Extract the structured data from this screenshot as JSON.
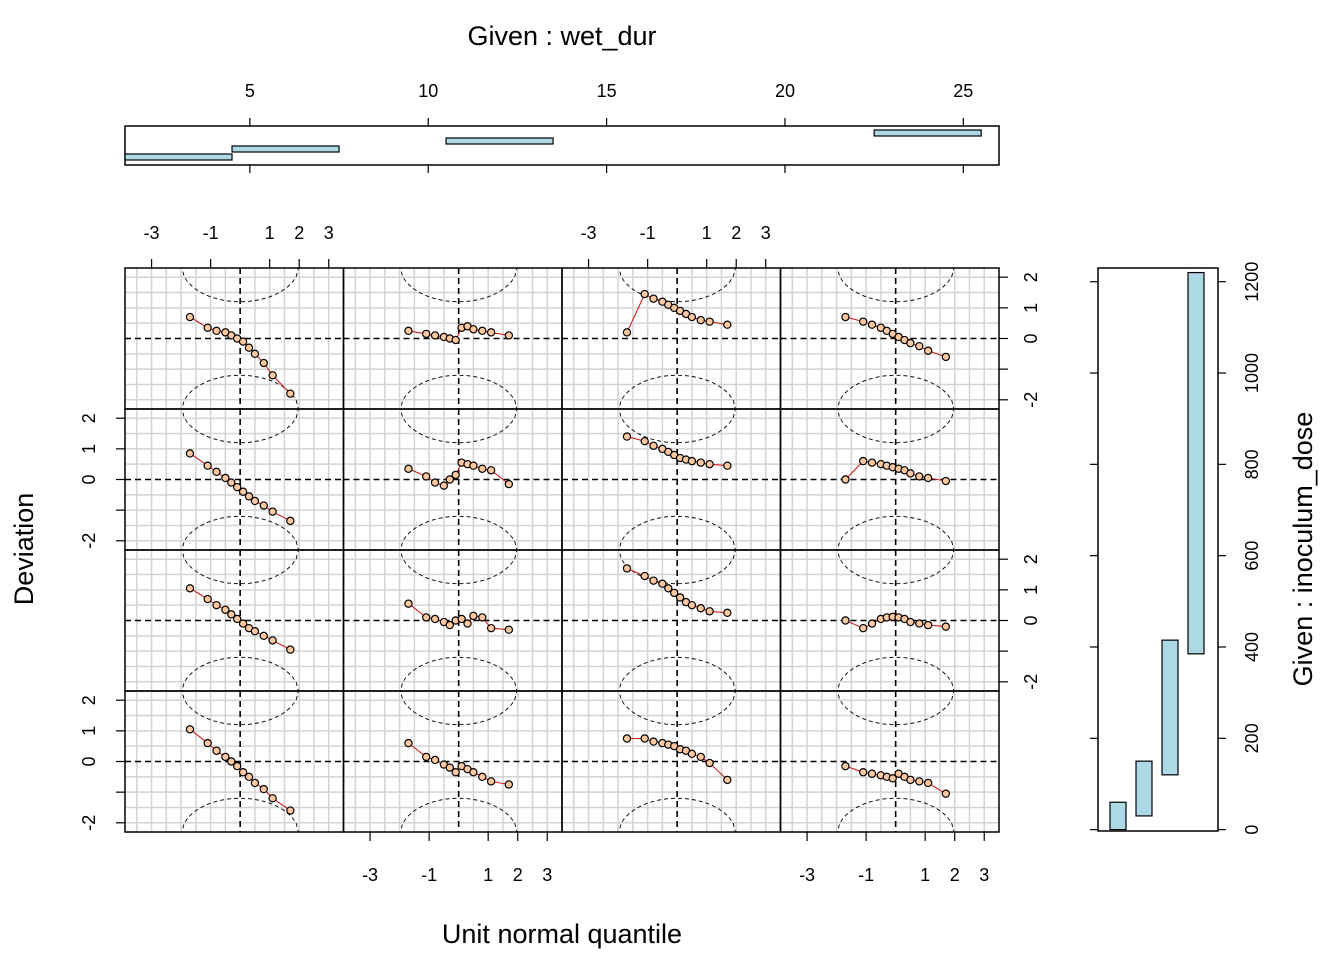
{
  "chart_data": {
    "type": "scatter",
    "title": "",
    "xlabel": "Unit normal quantile",
    "ylabel": "Deviation",
    "x_ticks": [
      -3,
      -1,
      1,
      2,
      3
    ],
    "y_ticks": [
      2,
      1,
      0,
      -2
    ],
    "panel_xlim": [
      -3.9,
      3.5
    ],
    "panel_ylim": [
      -2.3,
      2.3
    ],
    "grid": true,
    "reference_line": {
      "x": 0,
      "y": 0
    },
    "given_top": {
      "label": "Given : wet_dur",
      "ticks": [
        5,
        10,
        15,
        20,
        25
      ],
      "range": [
        1.5,
        26
      ],
      "intervals": [
        [
          1.5,
          4.5
        ],
        [
          4.5,
          7.5
        ],
        [
          10.5,
          13.5
        ],
        [
          22.5,
          25.5
        ]
      ]
    },
    "given_right": {
      "label": "Given : inoculum_dose",
      "ticks": [
        0,
        200,
        400,
        600,
        800,
        1000,
        1200
      ],
      "range": [
        -3,
        1230
      ],
      "intervals": [
        [
          0,
          60
        ],
        [
          30,
          150
        ],
        [
          120,
          415
        ],
        [
          385,
          1220
        ]
      ]
    },
    "panels": [
      {
        "row": 1,
        "col": 1,
        "x": [
          -1.7,
          -1.1,
          -0.8,
          -0.5,
          -0.3,
          -0.1,
          0.1,
          0.3,
          0.5,
          0.8,
          1.1,
          1.7
        ],
        "y": [
          0.7,
          0.35,
          0.25,
          0.2,
          0.1,
          0.0,
          -0.1,
          -0.3,
          -0.5,
          -0.8,
          -1.2,
          -1.8
        ]
      },
      {
        "row": 1,
        "col": 2,
        "x": [
          -1.7,
          -1.1,
          -0.8,
          -0.5,
          -0.3,
          -0.1,
          0.1,
          0.3,
          0.5,
          0.8,
          1.1,
          1.7
        ],
        "y": [
          0.25,
          0.15,
          0.1,
          0.05,
          0.0,
          -0.05,
          0.35,
          0.4,
          0.3,
          0.25,
          0.2,
          0.1
        ]
      },
      {
        "row": 1,
        "col": 3,
        "x": [
          -1.7,
          -1.1,
          -0.8,
          -0.5,
          -0.3,
          -0.1,
          0.1,
          0.3,
          0.5,
          0.8,
          1.1,
          1.7
        ],
        "y": [
          0.2,
          1.45,
          1.3,
          1.2,
          1.1,
          1.0,
          0.9,
          0.8,
          0.7,
          0.6,
          0.55,
          0.45
        ]
      },
      {
        "row": 1,
        "col": 4,
        "x": [
          -1.7,
          -1.1,
          -0.8,
          -0.5,
          -0.3,
          -0.1,
          0.1,
          0.3,
          0.5,
          0.8,
          1.1,
          1.7
        ],
        "y": [
          0.7,
          0.55,
          0.45,
          0.35,
          0.25,
          0.15,
          0.05,
          -0.05,
          -0.15,
          -0.25,
          -0.4,
          -0.6
        ]
      },
      {
        "row": 2,
        "col": 1,
        "x": [
          -1.7,
          -1.1,
          -0.8,
          -0.5,
          -0.3,
          -0.1,
          0.1,
          0.3,
          0.5,
          0.8,
          1.1,
          1.7
        ],
        "y": [
          0.85,
          0.45,
          0.25,
          0.05,
          -0.1,
          -0.25,
          -0.4,
          -0.55,
          -0.7,
          -0.85,
          -1.05,
          -1.35
        ]
      },
      {
        "row": 2,
        "col": 2,
        "x": [
          -1.7,
          -1.1,
          -0.8,
          -0.5,
          -0.3,
          -0.1,
          0.1,
          0.3,
          0.5,
          0.8,
          1.1,
          1.7
        ],
        "y": [
          0.35,
          0.1,
          -0.1,
          -0.2,
          0.0,
          0.15,
          0.55,
          0.5,
          0.45,
          0.35,
          0.3,
          -0.15
        ]
      },
      {
        "row": 2,
        "col": 3,
        "x": [
          -1.7,
          -1.1,
          -0.8,
          -0.5,
          -0.3,
          -0.1,
          0.1,
          0.3,
          0.5,
          0.8,
          1.1,
          1.7
        ],
        "y": [
          1.4,
          1.25,
          1.1,
          1.0,
          0.9,
          0.8,
          0.7,
          0.65,
          0.6,
          0.55,
          0.5,
          0.45
        ]
      },
      {
        "row": 2,
        "col": 4,
        "x": [
          -1.7,
          -1.1,
          -0.8,
          -0.5,
          -0.3,
          -0.1,
          0.1,
          0.3,
          0.5,
          0.8,
          1.1,
          1.7
        ],
        "y": [
          0.0,
          0.6,
          0.55,
          0.5,
          0.45,
          0.4,
          0.35,
          0.3,
          0.2,
          0.1,
          0.05,
          -0.05
        ]
      },
      {
        "row": 3,
        "col": 1,
        "x": [
          -1.7,
          -1.1,
          -0.8,
          -0.5,
          -0.3,
          -0.1,
          0.1,
          0.3,
          0.5,
          0.8,
          1.1,
          1.7
        ],
        "y": [
          1.05,
          0.7,
          0.5,
          0.35,
          0.2,
          0.05,
          -0.1,
          -0.25,
          -0.35,
          -0.5,
          -0.65,
          -0.95
        ]
      },
      {
        "row": 3,
        "col": 2,
        "x": [
          -1.7,
          -1.1,
          -0.8,
          -0.5,
          -0.3,
          -0.1,
          0.1,
          0.3,
          0.5,
          0.8,
          1.1,
          1.7
        ],
        "y": [
          0.55,
          0.1,
          0.05,
          -0.05,
          -0.15,
          0.0,
          0.05,
          -0.1,
          0.15,
          0.1,
          -0.25,
          -0.3
        ]
      },
      {
        "row": 3,
        "col": 3,
        "x": [
          -1.7,
          -1.1,
          -0.8,
          -0.5,
          -0.3,
          -0.1,
          0.1,
          0.3,
          0.5,
          0.8,
          1.1,
          1.7
        ],
        "y": [
          1.7,
          1.45,
          1.3,
          1.2,
          1.05,
          0.9,
          0.75,
          0.6,
          0.5,
          0.4,
          0.3,
          0.25
        ]
      },
      {
        "row": 3,
        "col": 4,
        "x": [
          -1.7,
          -1.1,
          -0.8,
          -0.5,
          -0.3,
          -0.1,
          0.1,
          0.3,
          0.5,
          0.8,
          1.1,
          1.7
        ],
        "y": [
          0.0,
          -0.25,
          -0.1,
          0.05,
          0.1,
          0.12,
          0.1,
          0.05,
          -0.05,
          -0.1,
          -0.15,
          -0.2
        ]
      },
      {
        "row": 4,
        "col": 1,
        "x": [
          -1.7,
          -1.1,
          -0.8,
          -0.5,
          -0.3,
          -0.1,
          0.1,
          0.3,
          0.5,
          0.8,
          1.1,
          1.7
        ],
        "y": [
          1.05,
          0.6,
          0.35,
          0.15,
          0.0,
          -0.15,
          -0.35,
          -0.5,
          -0.7,
          -0.9,
          -1.2,
          -1.6
        ]
      },
      {
        "row": 4,
        "col": 2,
        "x": [
          -1.7,
          -1.1,
          -0.8,
          -0.5,
          -0.3,
          -0.1,
          0.1,
          0.3,
          0.5,
          0.8,
          1.1,
          1.7
        ],
        "y": [
          0.6,
          0.15,
          0.05,
          -0.1,
          -0.2,
          -0.35,
          -0.15,
          -0.25,
          -0.35,
          -0.5,
          -0.65,
          -0.75
        ]
      },
      {
        "row": 4,
        "col": 3,
        "x": [
          -1.7,
          -1.1,
          -0.8,
          -0.5,
          -0.3,
          -0.1,
          0.1,
          0.3,
          0.5,
          0.8,
          1.1,
          1.7
        ],
        "y": [
          0.75,
          0.75,
          0.65,
          0.6,
          0.55,
          0.5,
          0.4,
          0.35,
          0.25,
          0.15,
          -0.05,
          -0.6
        ]
      },
      {
        "row": 4,
        "col": 4,
        "x": [
          -1.7,
          -1.1,
          -0.8,
          -0.5,
          -0.3,
          -0.1,
          0.1,
          0.3,
          0.5,
          0.8,
          1.1,
          1.7
        ],
        "y": [
          -0.15,
          -0.35,
          -0.4,
          -0.45,
          -0.5,
          -0.55,
          -0.4,
          -0.5,
          -0.6,
          -0.65,
          -0.7,
          -1.05
        ]
      }
    ]
  },
  "colors": {
    "point_fill": "#FFC8A0",
    "point_stroke": "#000000",
    "smooth_line": "#D11F1F",
    "given_bar_fill": "#ADD8E6",
    "grid": "#D3D3D3"
  }
}
